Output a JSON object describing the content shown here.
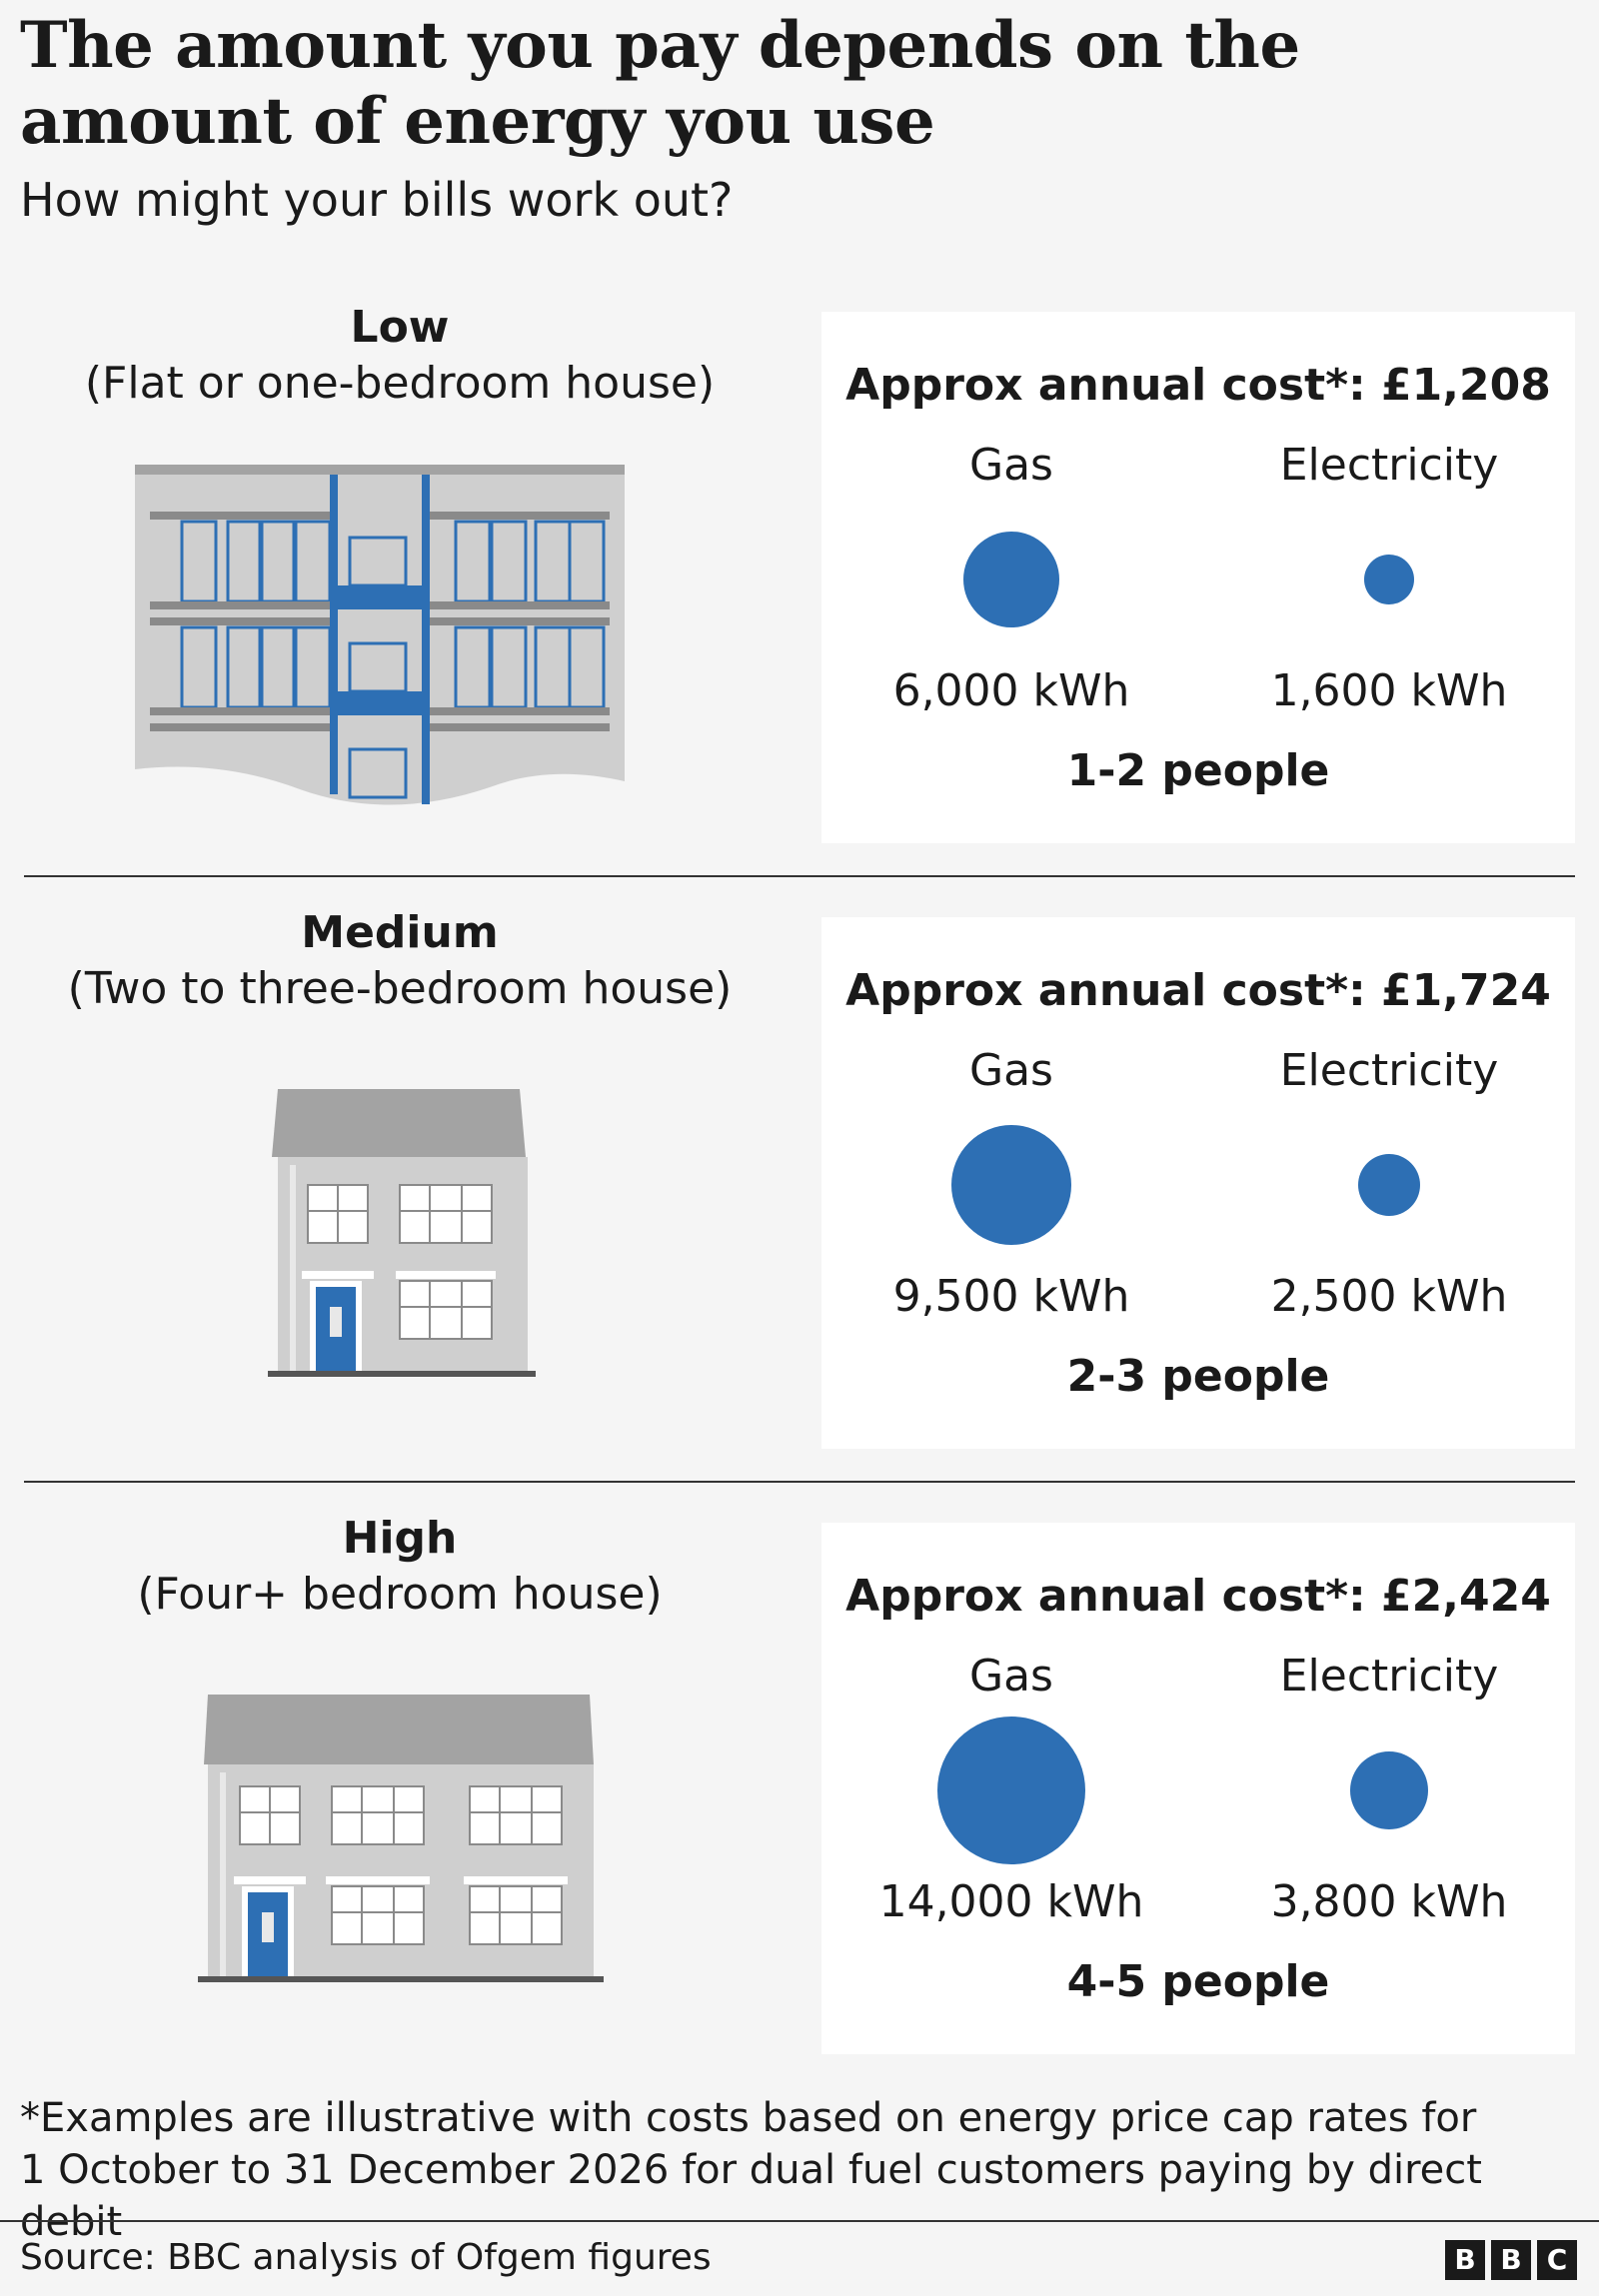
{
  "title": "The amount you pay depends on the amount of energy you use",
  "subtitle": "How might your bills work out?",
  "rows": [
    {
      "level": "Low",
      "description": "(Flat or one-bedroom house)",
      "icon": "apartment-block-icon",
      "cost": "Approx annual cost*: £1,208",
      "gas_label": "Gas",
      "electricity_label": "Electricity",
      "gas_kwh": "6,000 kWh",
      "gas_value": 6000,
      "electricity_kwh": "1,600 kWh",
      "electricity_value": 1600,
      "people": "1-2 people"
    },
    {
      "level": "Medium",
      "description": "(Two to three-bedroom house)",
      "icon": "medium-house-icon",
      "cost": "Approx annual cost*: £1,724",
      "gas_label": "Gas",
      "electricity_label": "Electricity",
      "gas_kwh": "9,500 kWh",
      "gas_value": 9500,
      "electricity_kwh": "2,500 kWh",
      "electricity_value": 2500,
      "people": "2-3 people"
    },
    {
      "level": "High",
      "description": "(Four+ bedroom house)",
      "icon": "large-house-icon",
      "cost": "Approx annual cost*: £2,424",
      "gas_label": "Gas",
      "electricity_label": "Electricity",
      "gas_kwh": "14,000 kWh",
      "gas_value": 14000,
      "electricity_kwh": "3,800 kWh",
      "electricity_value": 3800,
      "people": "4-5 people"
    }
  ],
  "footnote_line1": "*Examples are illustrative with costs based on energy price cap rates for",
  "footnote_line2": "1 October to 31 December 2026 for dual fuel customers paying by direct debit",
  "source": "Source: BBC analysis of Ofgem figures",
  "logo": [
    "B",
    "B",
    "C"
  ],
  "colors": {
    "accent": "#2d6fb4",
    "building": "#cfcfcf",
    "roof": "#a3a3a3",
    "card": "#ffffff"
  }
}
